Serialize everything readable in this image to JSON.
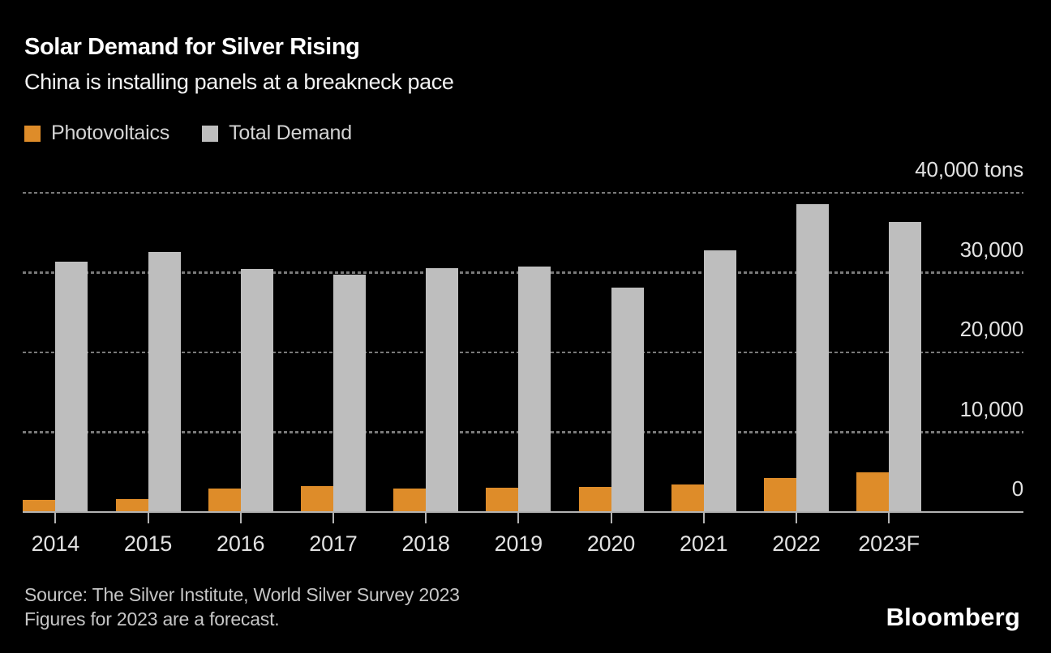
{
  "header": {
    "title": "Solar Demand for Silver Rising",
    "subtitle": "China is installing panels at a breakneck pace"
  },
  "chart_data": {
    "type": "bar",
    "title": "Solar Demand for Silver Rising",
    "subtitle": "China is installing panels at a breakneck pace",
    "unit": "tons",
    "categories": [
      "2014",
      "2015",
      "2016",
      "2017",
      "2018",
      "2019",
      "2020",
      "2021",
      "2022",
      "2023F"
    ],
    "series": [
      {
        "name": "Photovoltaics",
        "color": "#DE8C29",
        "values": [
          1500,
          1600,
          2900,
          3200,
          2900,
          3000,
          3100,
          3500,
          4300,
          5000
        ]
      },
      {
        "name": "Total Demand",
        "color": "#BEBEBE",
        "values": [
          31400,
          32600,
          30500,
          29700,
          30600,
          30800,
          28100,
          32800,
          38600,
          36300
        ]
      }
    ],
    "ylim": [
      0,
      40000
    ],
    "yticks": [
      0,
      10000,
      20000,
      30000,
      40000
    ],
    "ytick_labels": [
      "0",
      "10,000",
      "20,000",
      "30,000",
      "40,000 tons"
    ],
    "grid": "dotted-horizontal",
    "legend_position": "top-left"
  },
  "footer": {
    "source_line1": "Source: The Silver Institute, World Silver Survey 2023",
    "source_line2": "Figures for 2023 are a forecast.",
    "logo": "Bloomberg"
  },
  "colors": {
    "background": "#000000",
    "photovoltaics": "#DE8C29",
    "total_demand": "#BEBEBE",
    "gridline": "#7A7A7A",
    "axis_line": "#B3B3B3",
    "title_text": "#FFFFFF",
    "axis_text": "#E2E2E2",
    "legend_text": "#D4D4D4",
    "source_text": "#C6C6C6"
  }
}
